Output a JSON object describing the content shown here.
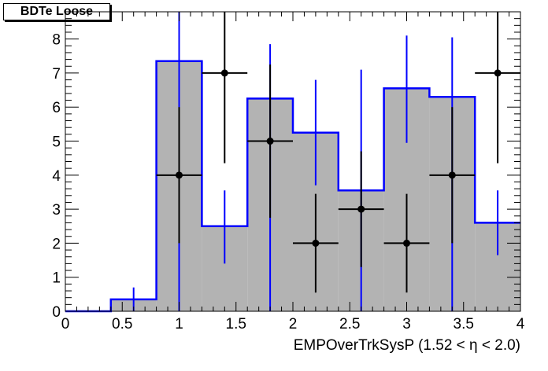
{
  "title": "BDTe Loose",
  "colors": {
    "hist_fill": "#b3b3b3",
    "hist_line": "#0000ff",
    "points": "#000000"
  },
  "chart_data": {
    "type": "bar",
    "title": "BDTe Loose",
    "xlabel": "EMPOverTrkSysP (1.52 <   η < 2.0)",
    "ylabel": "",
    "xlim": [
      0,
      4
    ],
    "ylim": [
      0,
      8.8
    ],
    "x_ticks": [
      "0",
      "0.5",
      "1",
      "1.5",
      "2",
      "2.5",
      "3",
      "3.5",
      "4"
    ],
    "y_ticks": [
      "0",
      "1",
      "2",
      "3",
      "4",
      "5",
      "6",
      "7",
      "8"
    ],
    "bin_edges": [
      0,
      0.4,
      0.8,
      1.2,
      1.6,
      2.0,
      2.4,
      2.8,
      3.2,
      3.6,
      4.0
    ],
    "series": [
      {
        "kind": "histogram",
        "values": [
          0,
          0.35,
          7.35,
          2.5,
          6.25,
          5.25,
          3.55,
          6.55,
          6.3,
          2.6
        ],
        "err_low": [
          0,
          0.35,
          7.35,
          1.1,
          6.25,
          1.55,
          3.55,
          1.6,
          6.3,
          0.95
        ],
        "err_high": [
          0,
          0.35,
          8.8,
          1.05,
          1.6,
          1.55,
          3.55,
          1.55,
          1.75,
          0.95
        ]
      },
      {
        "kind": "points",
        "x": [
          0.2,
          0.6,
          1.0,
          1.4,
          1.8,
          2.2,
          2.6,
          3.0,
          3.4,
          3.8
        ],
        "values": [
          0,
          0,
          4,
          7,
          5,
          2,
          3,
          2,
          4,
          7
        ],
        "err_low": [
          0,
          0,
          2.0,
          2.65,
          2.25,
          1.45,
          1.7,
          1.45,
          2.0,
          2.65
        ],
        "err_high": [
          0,
          0,
          2.0,
          2.65,
          2.25,
          1.45,
          1.7,
          1.45,
          2.0,
          2.65
        ]
      }
    ]
  }
}
